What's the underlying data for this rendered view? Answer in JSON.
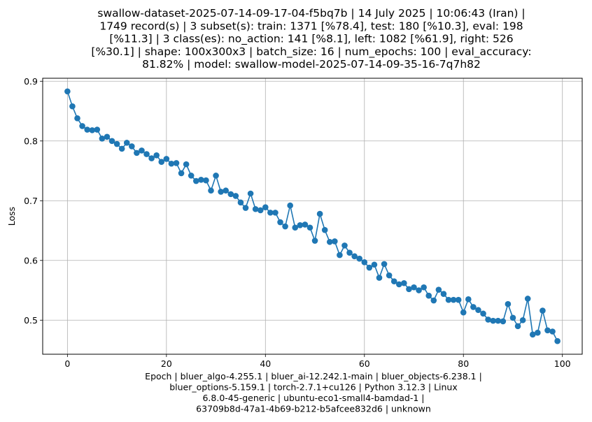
{
  "chart_data": {
    "type": "line",
    "title_lines": [
      "swallow-dataset-2025-07-14-09-17-04-f5bq7b | 14 July 2025 | 10:06:43 (Iran) |",
      "1749 record(s) | 3 subset(s): train: 1371 [%78.4], test: 180 [%10.3], eval: 198",
      "[%11.3] | 3 class(es): no_action: 141 [%8.1], left: 1082 [%61.9], right: 526",
      "[%30.1] | shape: 100x300x3 | batch_size: 16 | num_epochs: 100 | eval_accuracy:",
      "81.82% | model: swallow-model-2025-07-14-09-35-16-7q7h82"
    ],
    "xlabel_lines": [
      "Epoch | bluer_algo-4.255.1 | bluer_ai-12.242.1-main | bluer_objects-6.238.1 |",
      "bluer_options-5.159.1 | torch-2.7.1+cu126 | Python 3.12.3 | Linux",
      "6.8.0-45-generic | ubuntu-eco1-small4-bamdad-1 |",
      "63709b8d-47a1-4b69-b212-b5afcee832d6 | unknown"
    ],
    "ylabel": "Loss",
    "xlim": [
      -5,
      104
    ],
    "ylim": [
      0.443,
      0.905
    ],
    "xticks": [
      0,
      20,
      40,
      60,
      80,
      100
    ],
    "xtick_labels": [
      "0",
      "20",
      "40",
      "60",
      "80",
      "100"
    ],
    "yticks": [
      0.5,
      0.6,
      0.7,
      0.8,
      0.9
    ],
    "ytick_labels": [
      "0.5",
      "0.6",
      "0.7",
      "0.8",
      "0.9"
    ],
    "grid": true,
    "marker": "circle",
    "color": "#1f77b4",
    "series": [
      {
        "x": [
          0,
          1,
          2,
          3,
          4,
          5,
          6,
          7,
          8,
          9,
          10,
          11,
          12,
          13,
          14,
          15,
          16,
          17,
          18,
          19,
          20,
          21,
          22,
          23,
          24,
          25,
          26,
          27,
          28,
          29,
          30,
          31,
          32,
          33,
          34,
          35,
          36,
          37,
          38,
          39,
          40,
          41,
          42,
          43,
          44,
          45,
          46,
          47,
          48,
          49,
          50,
          51,
          52,
          53,
          54,
          55,
          56,
          57,
          58,
          59,
          60,
          61,
          62,
          63,
          64,
          65,
          66,
          67,
          68,
          69,
          70,
          71,
          72,
          73,
          74,
          75,
          76,
          77,
          78,
          79,
          80,
          81,
          82,
          83,
          84,
          85,
          86,
          87,
          88,
          89,
          90,
          91,
          92,
          93,
          94,
          95,
          96,
          97,
          98,
          99
        ],
        "values": [
          0.883,
          0.858,
          0.838,
          0.825,
          0.819,
          0.818,
          0.819,
          0.804,
          0.807,
          0.8,
          0.795,
          0.787,
          0.797,
          0.791,
          0.78,
          0.784,
          0.778,
          0.771,
          0.776,
          0.765,
          0.77,
          0.762,
          0.763,
          0.746,
          0.761,
          0.742,
          0.733,
          0.735,
          0.734,
          0.717,
          0.742,
          0.715,
          0.717,
          0.711,
          0.708,
          0.697,
          0.688,
          0.712,
          0.686,
          0.684,
          0.689,
          0.68,
          0.68,
          0.664,
          0.657,
          0.692,
          0.655,
          0.659,
          0.66,
          0.655,
          0.633,
          0.678,
          0.651,
          0.631,
          0.632,
          0.609,
          0.625,
          0.613,
          0.607,
          0.603,
          0.597,
          0.588,
          0.593,
          0.571,
          0.594,
          0.575,
          0.565,
          0.56,
          0.562,
          0.552,
          0.555,
          0.55,
          0.555,
          0.541,
          0.533,
          0.551,
          0.544,
          0.534,
          0.534,
          0.534,
          0.513,
          0.535,
          0.522,
          0.517,
          0.511,
          0.501,
          0.499,
          0.499,
          0.498,
          0.527,
          0.504,
          0.49,
          0.5,
          0.536,
          0.476,
          0.479,
          0.516,
          0.483,
          0.481,
          0.465
        ]
      }
    ]
  }
}
